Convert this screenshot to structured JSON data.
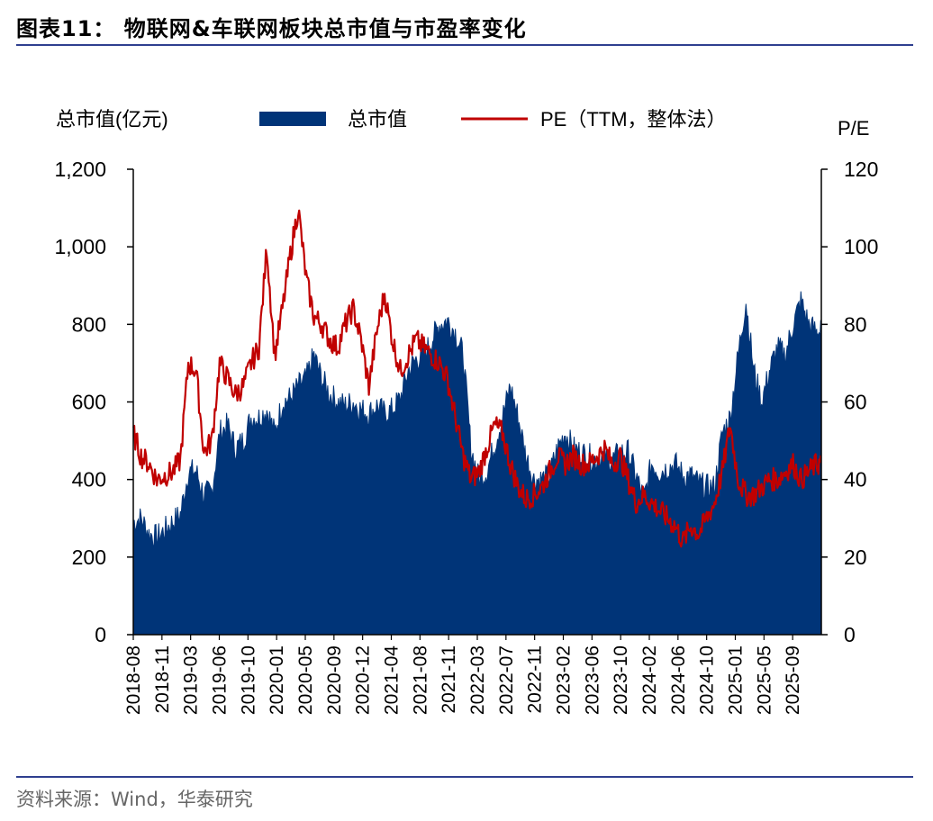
{
  "title": "图表11：  物联网&车联网板块总市值与市盈率变化",
  "source": "资料来源：Wind，华泰研究",
  "colors": {
    "market_cap": "#003478",
    "pe": "#c00000",
    "rule": "#2f3f8f"
  },
  "chart_data": {
    "type": "area",
    "left_axis_label": "总市值(亿元)",
    "right_axis_label": "P/E",
    "ylim_left": [
      0,
      1200
    ],
    "ylim_right": [
      0,
      120
    ],
    "yticks_left": [
      "0",
      "200",
      "400",
      "600",
      "800",
      "1,000",
      "1,200"
    ],
    "yticks_right": [
      "0",
      "20",
      "40",
      "60",
      "80",
      "100",
      "120"
    ],
    "x_tick_labels": [
      "2018-08",
      "2018-11",
      "2019-03",
      "2019-06",
      "2019-10",
      "2020-01",
      "2020-05",
      "2020-09",
      "2020-12",
      "2021-04",
      "2021-08",
      "2021-11",
      "2022-03",
      "2022-07",
      "2022-11",
      "2023-02",
      "2023-06",
      "2023-10",
      "2024-02",
      "2024-06",
      "2024-10",
      "2025-01",
      "2025-05",
      "2025-09"
    ],
    "legend": [
      "总市值",
      "PE（TTM，整体法）"
    ],
    "grid": false,
    "series": [
      {
        "name": "总市值",
        "type": "area",
        "axis": "left",
        "x": [
          "2018-08",
          "2018-09",
          "2018-10",
          "2018-11",
          "2018-12",
          "2019-01",
          "2019-02",
          "2019-03",
          "2019-04",
          "2019-05",
          "2019-06",
          "2019-07",
          "2019-08",
          "2019-09",
          "2019-10",
          "2019-11",
          "2019-12",
          "2020-01",
          "2020-02",
          "2020-03",
          "2020-04",
          "2020-05",
          "2020-06",
          "2020-07",
          "2020-08",
          "2020-09",
          "2020-10",
          "2020-11",
          "2020-12",
          "2021-01",
          "2021-02",
          "2021-03",
          "2021-04",
          "2021-05",
          "2021-06",
          "2021-07",
          "2021-08",
          "2021-09",
          "2021-10",
          "2021-11",
          "2021-12",
          "2022-01",
          "2022-02",
          "2022-03",
          "2022-04",
          "2022-05",
          "2022-06",
          "2022-07",
          "2022-08",
          "2022-09",
          "2022-10",
          "2022-11",
          "2022-12",
          "2023-01",
          "2023-02",
          "2023-03",
          "2023-04",
          "2023-05",
          "2023-06",
          "2023-07",
          "2023-08",
          "2023-09",
          "2023-10",
          "2023-11",
          "2023-12",
          "2024-01",
          "2024-02",
          "2024-03",
          "2024-04",
          "2024-05",
          "2024-06",
          "2024-07",
          "2024-08",
          "2024-09",
          "2024-10",
          "2024-11",
          "2024-12",
          "2025-01",
          "2025-02",
          "2025-03",
          "2025-04",
          "2025-05",
          "2025-06",
          "2025-07",
          "2025-08",
          "2025-09",
          "2025-10",
          "2025-11"
        ],
        "values": [
          290,
          300,
          260,
          250,
          270,
          290,
          310,
          420,
          420,
          360,
          370,
          520,
          540,
          480,
          500,
          560,
          560,
          580,
          520,
          600,
          610,
          640,
          660,
          720,
          660,
          620,
          600,
          590,
          600,
          580,
          570,
          590,
          570,
          580,
          610,
          680,
          710,
          720,
          760,
          800,
          810,
          780,
          720,
          480,
          400,
          420,
          490,
          560,
          640,
          560,
          460,
          400,
          400,
          410,
          480,
          520,
          480,
          470,
          460,
          450,
          460,
          450,
          470,
          470,
          410,
          350,
          440,
          420,
          430,
          440,
          410,
          410,
          390,
          380,
          380,
          520,
          560,
          720,
          860,
          680,
          600,
          680,
          740,
          720,
          800,
          860,
          800,
          780
        ]
      },
      {
        "name": "PE（TTM，整体法）",
        "type": "line",
        "axis": "right",
        "x": [
          "2018-08",
          "2018-09",
          "2018-10",
          "2018-11",
          "2018-12",
          "2019-01",
          "2019-02",
          "2019-03",
          "2019-04",
          "2019-05",
          "2019-06",
          "2019-07",
          "2019-08",
          "2019-09",
          "2019-10",
          "2019-11",
          "2019-12",
          "2020-01",
          "2020-02",
          "2020-03",
          "2020-04",
          "2020-05",
          "2020-06",
          "2020-07",
          "2020-08",
          "2020-09",
          "2020-10",
          "2020-11",
          "2020-12",
          "2021-01",
          "2021-02",
          "2021-03",
          "2021-04",
          "2021-05",
          "2021-06",
          "2021-07",
          "2021-08",
          "2021-09",
          "2021-10",
          "2021-11",
          "2021-12",
          "2022-01",
          "2022-02",
          "2022-03",
          "2022-04",
          "2022-05",
          "2022-06",
          "2022-07",
          "2022-08",
          "2022-09",
          "2022-10",
          "2022-11",
          "2022-12",
          "2023-01",
          "2023-02",
          "2023-03",
          "2023-04",
          "2023-05",
          "2023-06",
          "2023-07",
          "2023-08",
          "2023-09",
          "2023-10",
          "2023-11",
          "2023-12",
          "2024-01",
          "2024-02",
          "2024-03",
          "2024-04",
          "2024-05",
          "2024-06",
          "2024-07",
          "2024-08",
          "2024-09",
          "2024-10",
          "2024-11",
          "2024-12",
          "2025-01",
          "2025-02",
          "2025-03",
          "2025-04",
          "2025-05",
          "2025-06",
          "2025-07",
          "2025-08",
          "2025-09",
          "2025-10",
          "2025-11"
        ],
        "values": [
          52,
          46,
          44,
          40,
          41,
          42,
          45,
          70,
          68,
          47,
          50,
          70,
          66,
          62,
          64,
          70,
          74,
          100,
          72,
          84,
          98,
          110,
          92,
          82,
          80,
          76,
          74,
          80,
          84,
          76,
          64,
          78,
          88,
          76,
          68,
          72,
          76,
          74,
          72,
          70,
          66,
          56,
          46,
          40,
          42,
          48,
          54,
          52,
          44,
          38,
          35,
          36,
          38,
          42,
          46,
          44,
          46,
          44,
          44,
          46,
          48,
          44,
          46,
          40,
          34,
          36,
          34,
          32,
          30,
          28,
          24,
          28,
          26,
          30,
          34,
          42,
          54,
          40,
          36,
          36,
          38,
          40,
          40,
          42,
          44,
          40,
          42,
          44
        ]
      }
    ]
  }
}
